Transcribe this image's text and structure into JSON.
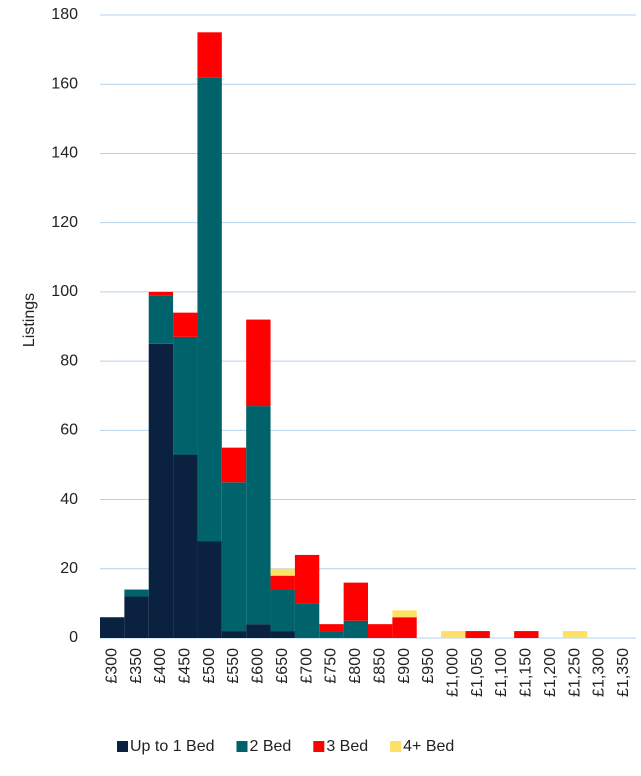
{
  "chart_data": {
    "type": "bar",
    "stacked": true,
    "y_label": "Listings",
    "categories": [
      "£300",
      "£350",
      "£400",
      "£450",
      "£500",
      "£550",
      "£600",
      "£650",
      "£700",
      "£750",
      "£800",
      "£850",
      "£900",
      "£950",
      "£1,000",
      "£1,050",
      "£1,100",
      "£1,150",
      "£1,200",
      "£1,250",
      "£1,300",
      "£1,350"
    ],
    "series": [
      {
        "name": "Up to 1 Bed",
        "color": "#0a2240",
        "values": [
          6,
          12,
          85,
          53,
          28,
          2,
          4,
          2,
          0,
          0,
          0,
          0,
          0,
          0,
          0,
          0,
          0,
          0,
          0,
          0,
          0,
          0
        ]
      },
      {
        "name": "2 Bed",
        "color": "#00626b",
        "values": [
          0,
          2,
          14,
          34,
          134,
          43,
          63,
          12,
          10,
          2,
          5,
          0,
          0,
          0,
          0,
          0,
          0,
          0,
          0,
          0,
          0,
          0
        ]
      },
      {
        "name": "3 Bed",
        "color": "#ff0000",
        "values": [
          0,
          0,
          1,
          7,
          13,
          10,
          25,
          4,
          14,
          2,
          11,
          4,
          6,
          0,
          0,
          2,
          0,
          2,
          0,
          0,
          0,
          0
        ]
      },
      {
        "name": "4+ Bed",
        "color": "#ffe066",
        "values": [
          0,
          0,
          0,
          0,
          0,
          0,
          0,
          2,
          0,
          0,
          0,
          0,
          2,
          0,
          2,
          0,
          0,
          0,
          0,
          2,
          0,
          0
        ]
      }
    ],
    "ylim": [
      0,
      180
    ],
    "yticks": [
      0,
      20,
      40,
      60,
      80,
      100,
      120,
      140,
      160,
      180
    ],
    "grid": true,
    "legend": "bottom"
  }
}
